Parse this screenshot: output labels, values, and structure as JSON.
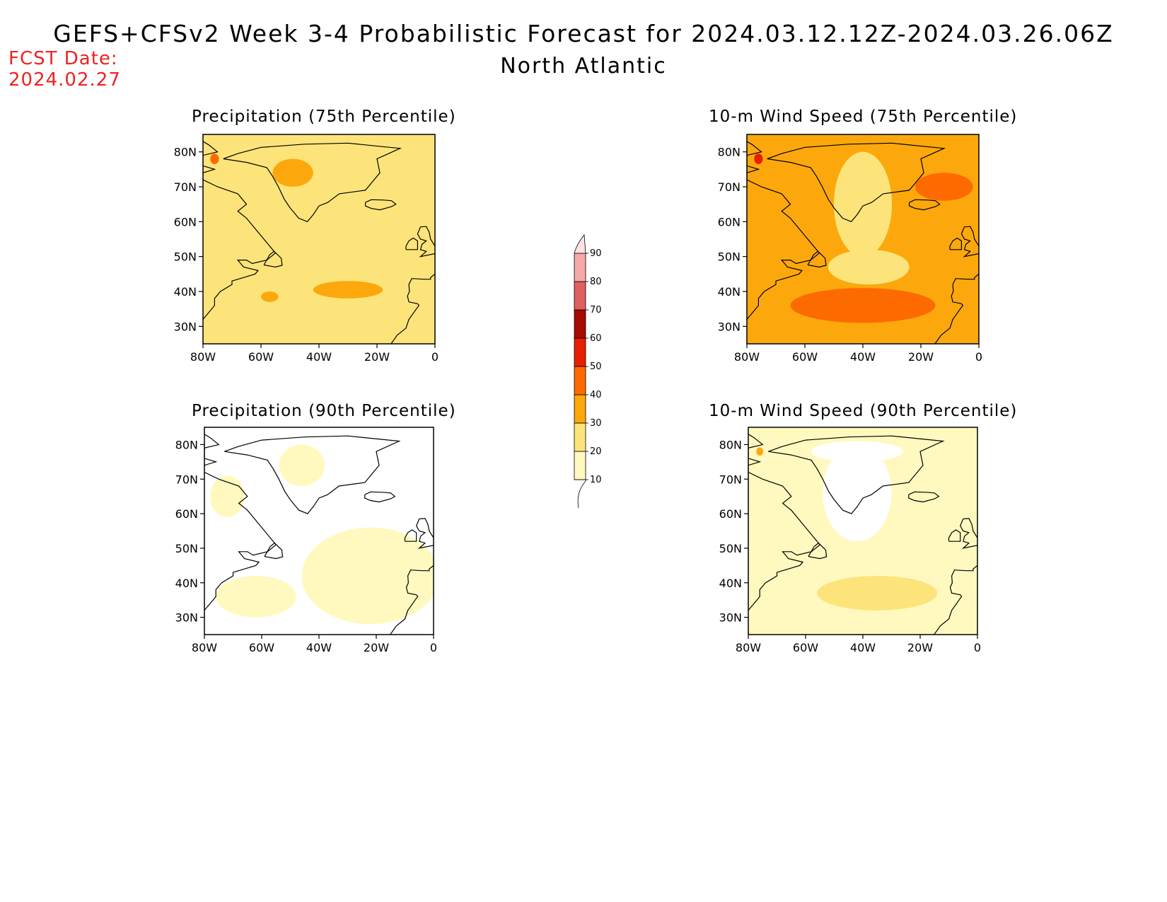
{
  "header": {
    "title": "GEFS+CFSv2 Week 3-4 Probabilistic Forecast for 2024.03.12.12Z-2024.03.26.06Z",
    "region": "North Atlantic",
    "fcst_label": "FCST Date:",
    "fcst_date": "2024.02.27"
  },
  "axes": {
    "lat_ticks": [
      "80N",
      "70N",
      "60N",
      "50N",
      "40N",
      "30N"
    ],
    "lat_values": [
      80,
      70,
      60,
      50,
      40,
      30
    ],
    "lon_ticks": [
      "80W",
      "60W",
      "40W",
      "20W",
      "0"
    ],
    "lon_values": [
      -80,
      -60,
      -40,
      -20,
      0
    ],
    "lat_range": [
      25,
      85
    ],
    "lon_range": [
      -80,
      0
    ]
  },
  "panels": [
    {
      "id": "precip-75",
      "title": "Precipitation (75th Percentile)",
      "background_level": 20,
      "highlights": [
        {
          "level": 30,
          "lon": -49,
          "lat": 74,
          "rx": 7,
          "ry": 4
        },
        {
          "level": 30,
          "lon": -30,
          "lat": 40.5,
          "rx": 12,
          "ry": 2.5
        },
        {
          "level": 30,
          "lon": -57,
          "lat": 38.5,
          "rx": 3,
          "ry": 1.5
        },
        {
          "level": 40,
          "lon": -76,
          "lat": 78,
          "rx": 1.5,
          "ry": 1.5
        }
      ]
    },
    {
      "id": "wind-75",
      "title": "10-m Wind Speed (75th Percentile)",
      "background_level": 30,
      "highlights": [
        {
          "level": 20,
          "lon": -40,
          "lat": 65,
          "rx": 10,
          "ry": 15
        },
        {
          "level": 20,
          "lon": -38,
          "lat": 47,
          "rx": 14,
          "ry": 5
        },
        {
          "level": 40,
          "lon": -40,
          "lat": 36,
          "rx": 25,
          "ry": 5
        },
        {
          "level": 40,
          "lon": -12,
          "lat": 70,
          "rx": 10,
          "ry": 4
        },
        {
          "level": 50,
          "lon": -76,
          "lat": 78,
          "rx": 1.5,
          "ry": 1.5
        }
      ]
    },
    {
      "id": "precip-90",
      "title": "Precipitation (90th Percentile)",
      "background_level": 0,
      "highlights": [
        {
          "level": 10,
          "lon": -22,
          "lat": 42,
          "rx": 24,
          "ry": 14
        },
        {
          "level": 10,
          "lon": -62,
          "lat": 36,
          "rx": 14,
          "ry": 6
        },
        {
          "level": 10,
          "lon": -46,
          "lat": 74,
          "rx": 8,
          "ry": 6
        },
        {
          "level": 10,
          "lon": -72,
          "lat": 65,
          "rx": 6,
          "ry": 6
        }
      ]
    },
    {
      "id": "wind-90",
      "title": "10-m Wind Speed (90th Percentile)",
      "background_level": 10,
      "highlights": [
        {
          "level": 0,
          "lon": -42,
          "lat": 66,
          "rx": 12,
          "ry": 14
        },
        {
          "level": 0,
          "lon": -42,
          "lat": 78,
          "rx": 16,
          "ry": 3
        },
        {
          "level": 20,
          "lon": -35,
          "lat": 37,
          "rx": 21,
          "ry": 5
        },
        {
          "level": 30,
          "lon": -76,
          "lat": 78,
          "rx": 1.2,
          "ry": 1.2
        }
      ]
    }
  ],
  "colorbar": {
    "levels": [
      10,
      20,
      30,
      40,
      50,
      60,
      70,
      80,
      90
    ],
    "labels": [
      "10",
      "20",
      "30",
      "40",
      "50",
      "60",
      "70",
      "80",
      "90"
    ]
  },
  "level_colors": {
    "0": "#ffffff",
    "10": "#fff9bf",
    "20": "#fde47a",
    "30": "#fca80c",
    "40": "#fd6a00",
    "50": "#e81e00",
    "60": "#a60a00",
    "70": "#df6060",
    "80": "#f6a8a8",
    "90": "#fde4e4"
  },
  "colors": {
    "coastline": "#000000",
    "fcst_text": "#ee2222"
  }
}
